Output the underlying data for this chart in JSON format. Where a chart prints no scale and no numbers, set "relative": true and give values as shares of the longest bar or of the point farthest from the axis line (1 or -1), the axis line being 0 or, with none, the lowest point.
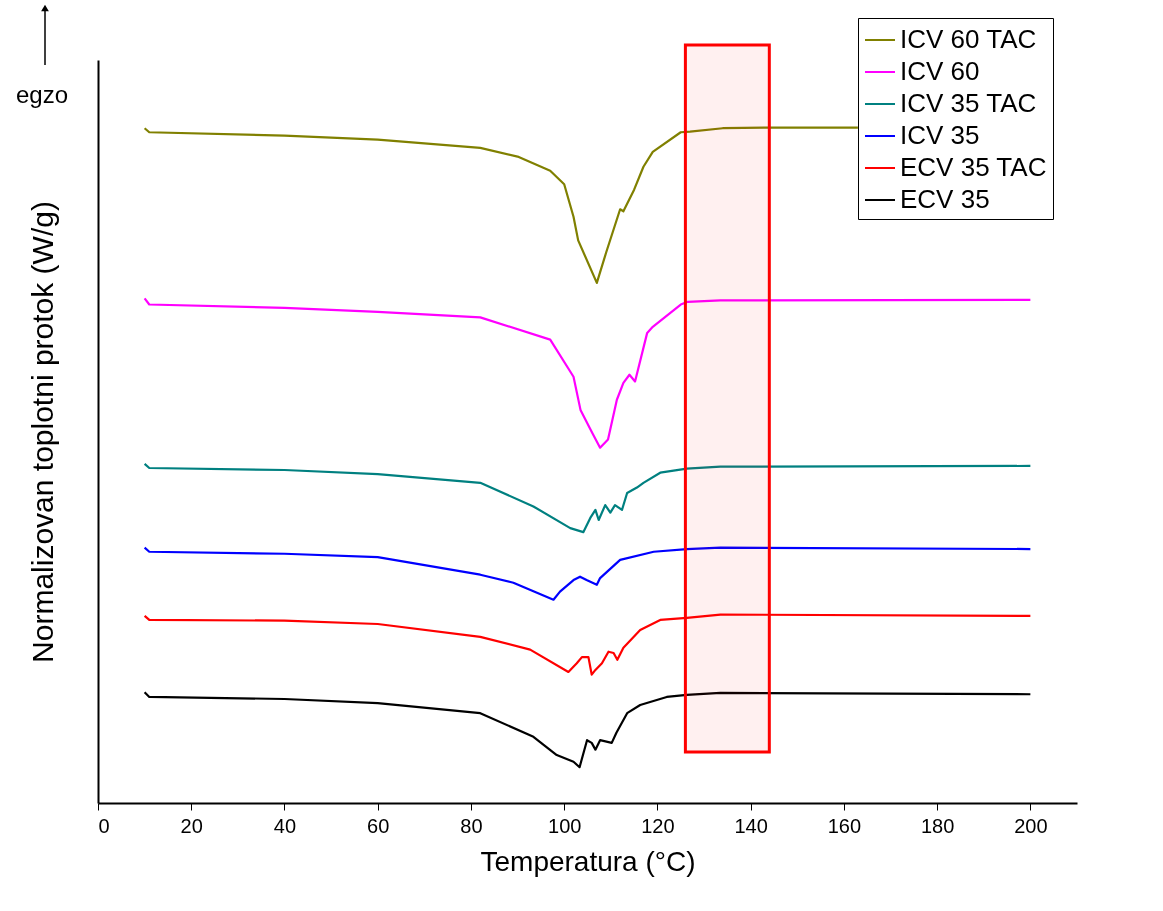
{
  "chart_data": {
    "type": "line",
    "relative": true,
    "xlabel": "Temperatura (°C)",
    "ylabel": "Normalizovan toplotni protok (W/g)",
    "xlim": [
      0,
      210
    ],
    "xticks": [
      0,
      20,
      40,
      60,
      80,
      100,
      120,
      140,
      160,
      180,
      200
    ],
    "grid": false,
    "legend": "top right",
    "line_style": "solid",
    "marker": "none",
    "annotations": [
      "egzo"
    ],
    "bands": [
      {
        "axis": "x",
        "from": 126,
        "to": 144,
        "color": "#ff0000"
      }
    ],
    "series": [
      {
        "name": "ICV 60 TAC",
        "color": "#808000",
        "x": [
          10,
          11,
          40,
          60,
          82,
          90,
          97,
          100,
          102,
          103,
          107,
          109,
          112,
          112.7,
          115,
          117,
          119,
          125,
          127,
          134,
          145,
          163
        ],
        "values": [
          0.999,
          0.993,
          0.988,
          0.982,
          0.97,
          0.957,
          0.936,
          0.916,
          0.868,
          0.833,
          0.77,
          0.815,
          0.879,
          0.876,
          0.908,
          0.942,
          0.964,
          0.993,
          0.994,
          0.999,
          1.0,
          1.0
        ]
      },
      {
        "name": "ICV 60",
        "color": "#ff00ff",
        "x": [
          10,
          11,
          40,
          60,
          82,
          97,
          102,
          103.5,
          106,
          107.7,
          109.4,
          111.3,
          112.7,
          114,
          115.2,
          117.8,
          119,
          125,
          126.5,
          133.5,
          200
        ],
        "values": [
          0.747,
          0.738,
          0.733,
          0.727,
          0.719,
          0.686,
          0.631,
          0.582,
          0.548,
          0.526,
          0.538,
          0.597,
          0.622,
          0.634,
          0.624,
          0.696,
          0.705,
          0.738,
          0.742,
          0.744,
          0.745
        ]
      },
      {
        "name": "ICV 35 TAC",
        "color": "#008080",
        "x": [
          10,
          11,
          40,
          60,
          82,
          93.4,
          101.3,
          104.1,
          105.6,
          106.7,
          107.4,
          108.8,
          109.9,
          110.9,
          112.4,
          113.5,
          115.6,
          117,
          120.6,
          126.3,
          133.5,
          200
        ],
        "values": [
          0.502,
          0.496,
          0.493,
          0.487,
          0.474,
          0.439,
          0.407,
          0.401,
          0.422,
          0.434,
          0.419,
          0.441,
          0.43,
          0.441,
          0.434,
          0.459,
          0.467,
          0.474,
          0.489,
          0.495,
          0.498,
          0.499
        ]
      },
      {
        "name": "ICV 35",
        "color": "#0000ff",
        "x": [
          10,
          11,
          40,
          60,
          82,
          89.1,
          97.7,
          99.1,
          102,
          103.4,
          104.8,
          107,
          107.7,
          112,
          119.2,
          126.3,
          133.5,
          200
        ],
        "values": [
          0.378,
          0.372,
          0.369,
          0.364,
          0.338,
          0.326,
          0.301,
          0.313,
          0.33,
          0.335,
          0.33,
          0.323,
          0.333,
          0.36,
          0.372,
          0.376,
          0.378,
          0.376
        ]
      },
      {
        "name": "ECV 35 TAC",
        "color": "#ff0000",
        "x": [
          10,
          11,
          40,
          60,
          82,
          92.7,
          100.9,
          102.7,
          103.8,
          105.2,
          105.9,
          106.7,
          108.1,
          109.5,
          110.6,
          111.4,
          112.7,
          116.3,
          120.6,
          126.3,
          133.5,
          200
        ],
        "values": [
          0.277,
          0.271,
          0.27,
          0.265,
          0.246,
          0.227,
          0.194,
          0.207,
          0.216,
          0.216,
          0.19,
          0.197,
          0.207,
          0.224,
          0.222,
          0.212,
          0.23,
          0.256,
          0.271,
          0.274,
          0.279,
          0.277
        ]
      },
      {
        "name": "ECV 35",
        "color": "#000000",
        "x": [
          10,
          11,
          40,
          60,
          82,
          93.4,
          98.4,
          102,
          103.3,
          104.9,
          105.9,
          106.7,
          107.7,
          110.2,
          111.2,
          113.5,
          116.3,
          122,
          126.3,
          133.5,
          200
        ],
        "values": [
          0.164,
          0.157,
          0.154,
          0.148,
          0.133,
          0.098,
          0.071,
          0.061,
          0.053,
          0.093,
          0.089,
          0.079,
          0.093,
          0.089,
          0.104,
          0.133,
          0.145,
          0.157,
          0.16,
          0.163,
          0.161
        ]
      }
    ]
  }
}
